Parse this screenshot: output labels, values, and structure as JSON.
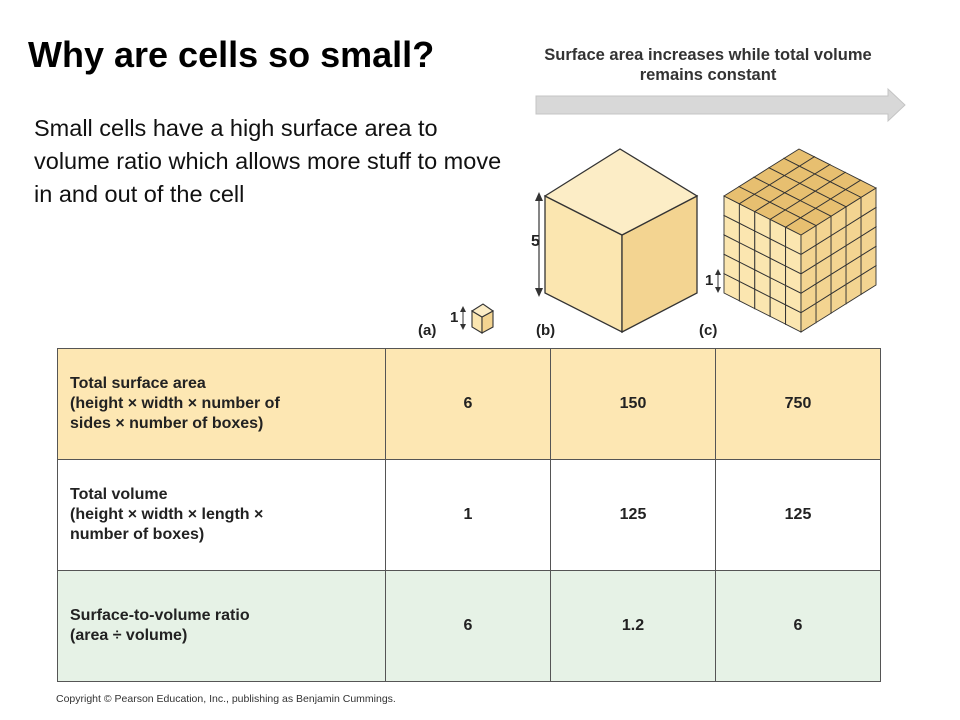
{
  "slide": {
    "title": "Why are cells so small?",
    "body": "Small cells have a high surface area to volume ratio which allows more stuff to move in and out of the cell"
  },
  "figure": {
    "arrow_caption": "Surface area increases while total volume remains constant",
    "labels": {
      "a": "(a)",
      "b": "(b)",
      "c": "(c)"
    },
    "dimensions": {
      "big_cube": "5",
      "small_cube_a": "1",
      "small_cube_c": "1"
    },
    "colors": {
      "cube_face_light": "#fbe6b0",
      "cube_face_mid": "#f3d491",
      "cube_face_dark": "#e7bf70",
      "arrow": "#d8d8d8"
    }
  },
  "table": {
    "rows": [
      {
        "header": [
          "Total surface area",
          "(height × width × number of",
          "sides × number of boxes)"
        ],
        "values": [
          "6",
          "150",
          "750"
        ],
        "color": "#fde7b3"
      },
      {
        "header": [
          "Total volume",
          "(height × width × length ×",
          "number of boxes)"
        ],
        "values": [
          "1",
          "125",
          "125"
        ],
        "color": "#ffffff"
      },
      {
        "header": [
          "Surface-to-volume ratio",
          "(area ÷ volume)"
        ],
        "values": [
          "6",
          "1.2",
          "6"
        ],
        "color": "#e6f2e6"
      }
    ]
  },
  "copyright": "Copyright © Pearson Education, Inc., publishing as Benjamin Cummings."
}
